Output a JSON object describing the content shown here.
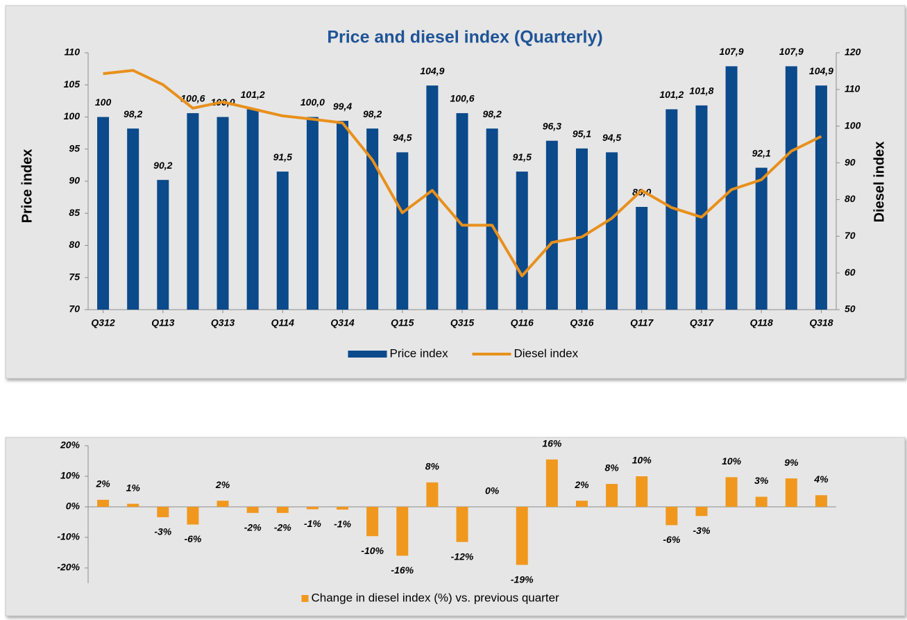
{
  "chart_data": [
    {
      "type": "combo",
      "title": "Price and diesel index (Quarterly)",
      "ylabel": "Price index",
      "y2label": "Diesel index",
      "categories": [
        "Q312",
        null,
        "Q113",
        null,
        "Q313",
        null,
        "Q114",
        null,
        "Q314",
        null,
        "Q115",
        null,
        "Q315",
        null,
        "Q116",
        null,
        "Q316",
        null,
        "Q117",
        null,
        "Q317",
        null,
        "Q118",
        null,
        "Q318"
      ],
      "series": [
        {
          "name": "Price index",
          "type": "bar",
          "color": "#0b4a8b",
          "values": [
            100,
            98.2,
            90.2,
            100.6,
            100.0,
            101.2,
            91.5,
            100.0,
            99.4,
            98.2,
            94.5,
            104.9,
            100.6,
            98.2,
            91.5,
            96.3,
            95.1,
            94.5,
            86.0,
            101.2,
            101.8,
            107.9,
            92.1,
            107.9,
            104.9
          ],
          "value_labels": [
            "100",
            "98,2",
            "90,2",
            "100,6",
            "100,0",
            "101,2",
            "91,5",
            "100,0",
            "99,4",
            "98,2",
            "94,5",
            "104,9",
            "100,6",
            "98,2",
            "91,5",
            "96,3",
            "95,1",
            "94,5",
            "86,0",
            "101,2",
            "101,8",
            "107,9",
            "92,1",
            "107,9",
            "104,9"
          ]
        },
        {
          "name": "Diesel index",
          "type": "line",
          "axis": "y2",
          "color": "#e8901c",
          "values": [
            114.3,
            115.2,
            111.3,
            104.9,
            106.6,
            104.7,
            102.8,
            101.9,
            100.9,
            90.8,
            76.4,
            82.5,
            73.0,
            73.0,
            59.2,
            68.3,
            69.8,
            74.9,
            82.5,
            77.8,
            75.2,
            82.7,
            85.4,
            93.2,
            97.2
          ]
        }
      ],
      "ylim": [
        70,
        110
      ],
      "yticks": [
        70,
        75,
        80,
        85,
        90,
        95,
        100,
        105,
        110
      ],
      "y2lim": [
        50,
        120
      ],
      "y2ticks": [
        50,
        60,
        70,
        80,
        90,
        100,
        110,
        120
      ],
      "grid": false,
      "legend": "bottom"
    },
    {
      "type": "bar",
      "series": [
        {
          "name": "Change in diesel index (%) vs. previous quarter",
          "type": "bar",
          "color": "#f0981e",
          "values": [
            2.3,
            1.0,
            -3.4,
            -5.8,
            2.0,
            -2.0,
            -2.0,
            -0.8,
            -0.9,
            -9.6,
            -16.0,
            8.0,
            -11.5,
            0,
            -19.0,
            15.5,
            2.0,
            7.5,
            10.0,
            -6.0,
            -3.0,
            9.7,
            3.3,
            9.3,
            3.8
          ],
          "value_labels": [
            "2%",
            "1%",
            "-3%",
            "-6%",
            "2%",
            "-2%",
            "-2%",
            "-1%",
            "-1%",
            "-10%",
            "-16%",
            "8%",
            "-12%",
            "0%",
            "-19%",
            "16%",
            "2%",
            "8%",
            "10%",
            "-6%",
            "-3%",
            "10%",
            "3%",
            "9%",
            "4%"
          ]
        }
      ],
      "ylim": [
        -25,
        20
      ],
      "yticks": [
        {
          "value": -20,
          "label": "-20%"
        },
        {
          "value": -10,
          "label": "-10%"
        },
        {
          "value": 0,
          "label": "0%"
        },
        {
          "value": 10,
          "label": "10%"
        },
        {
          "value": 20,
          "label": "20%"
        }
      ],
      "grid": false,
      "legend": "bottom"
    }
  ]
}
